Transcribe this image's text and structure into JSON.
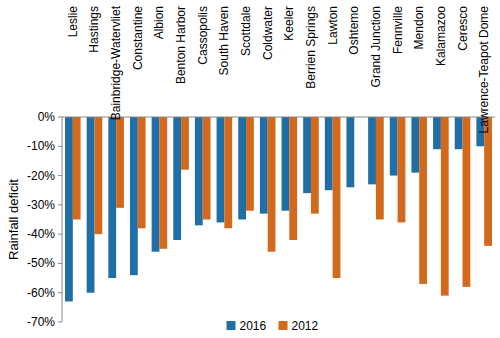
{
  "chart_data": {
    "type": "bar",
    "y_label": "Rainfall deficit",
    "categories": [
      "Leslie",
      "Hastings",
      "Bainbridge-Watervliet",
      "Constantine",
      "Albion",
      "Benton Harbor",
      "Cassopolis",
      "South Haven",
      "Scottdale",
      "Coldwater",
      "Keeler",
      "Berrien Springs",
      "Lawton",
      "Oshtemo",
      "Grand Junction",
      "Fennville",
      "Mendon",
      "Kalamazoo",
      "Ceresco",
      "Lawrence-Teapot Dome"
    ],
    "series": [
      {
        "name": "2016",
        "color": "#1f6ea6",
        "values": [
          -63,
          -60,
          -55,
          -54,
          -46,
          -42,
          -37,
          -36,
          -35,
          -33,
          -32,
          -26,
          -25,
          -24,
          -23,
          -20,
          -19,
          -11,
          -11,
          -10
        ]
      },
      {
        "name": "2012",
        "color": "#d2691c",
        "values": [
          -35,
          -40,
          -31,
          -38,
          -45,
          -18,
          -35,
          -38,
          -32,
          -46,
          -42,
          -33,
          -55,
          null,
          -35,
          -36,
          -57,
          -61,
          -58,
          -44
        ]
      }
    ],
    "ylim": [
      -70,
      0
    ],
    "yticks": [
      {
        "value": 0,
        "label": "0%"
      },
      {
        "value": -10,
        "label": "-10%"
      },
      {
        "value": -20,
        "label": "-20%"
      },
      {
        "value": -30,
        "label": "-30%"
      },
      {
        "value": -40,
        "label": "-40%"
      },
      {
        "value": -50,
        "label": "-50%"
      },
      {
        "value": -60,
        "label": "-60%"
      },
      {
        "value": -70,
        "label": "-70%"
      }
    ],
    "grid": false,
    "legend": "bottom"
  }
}
